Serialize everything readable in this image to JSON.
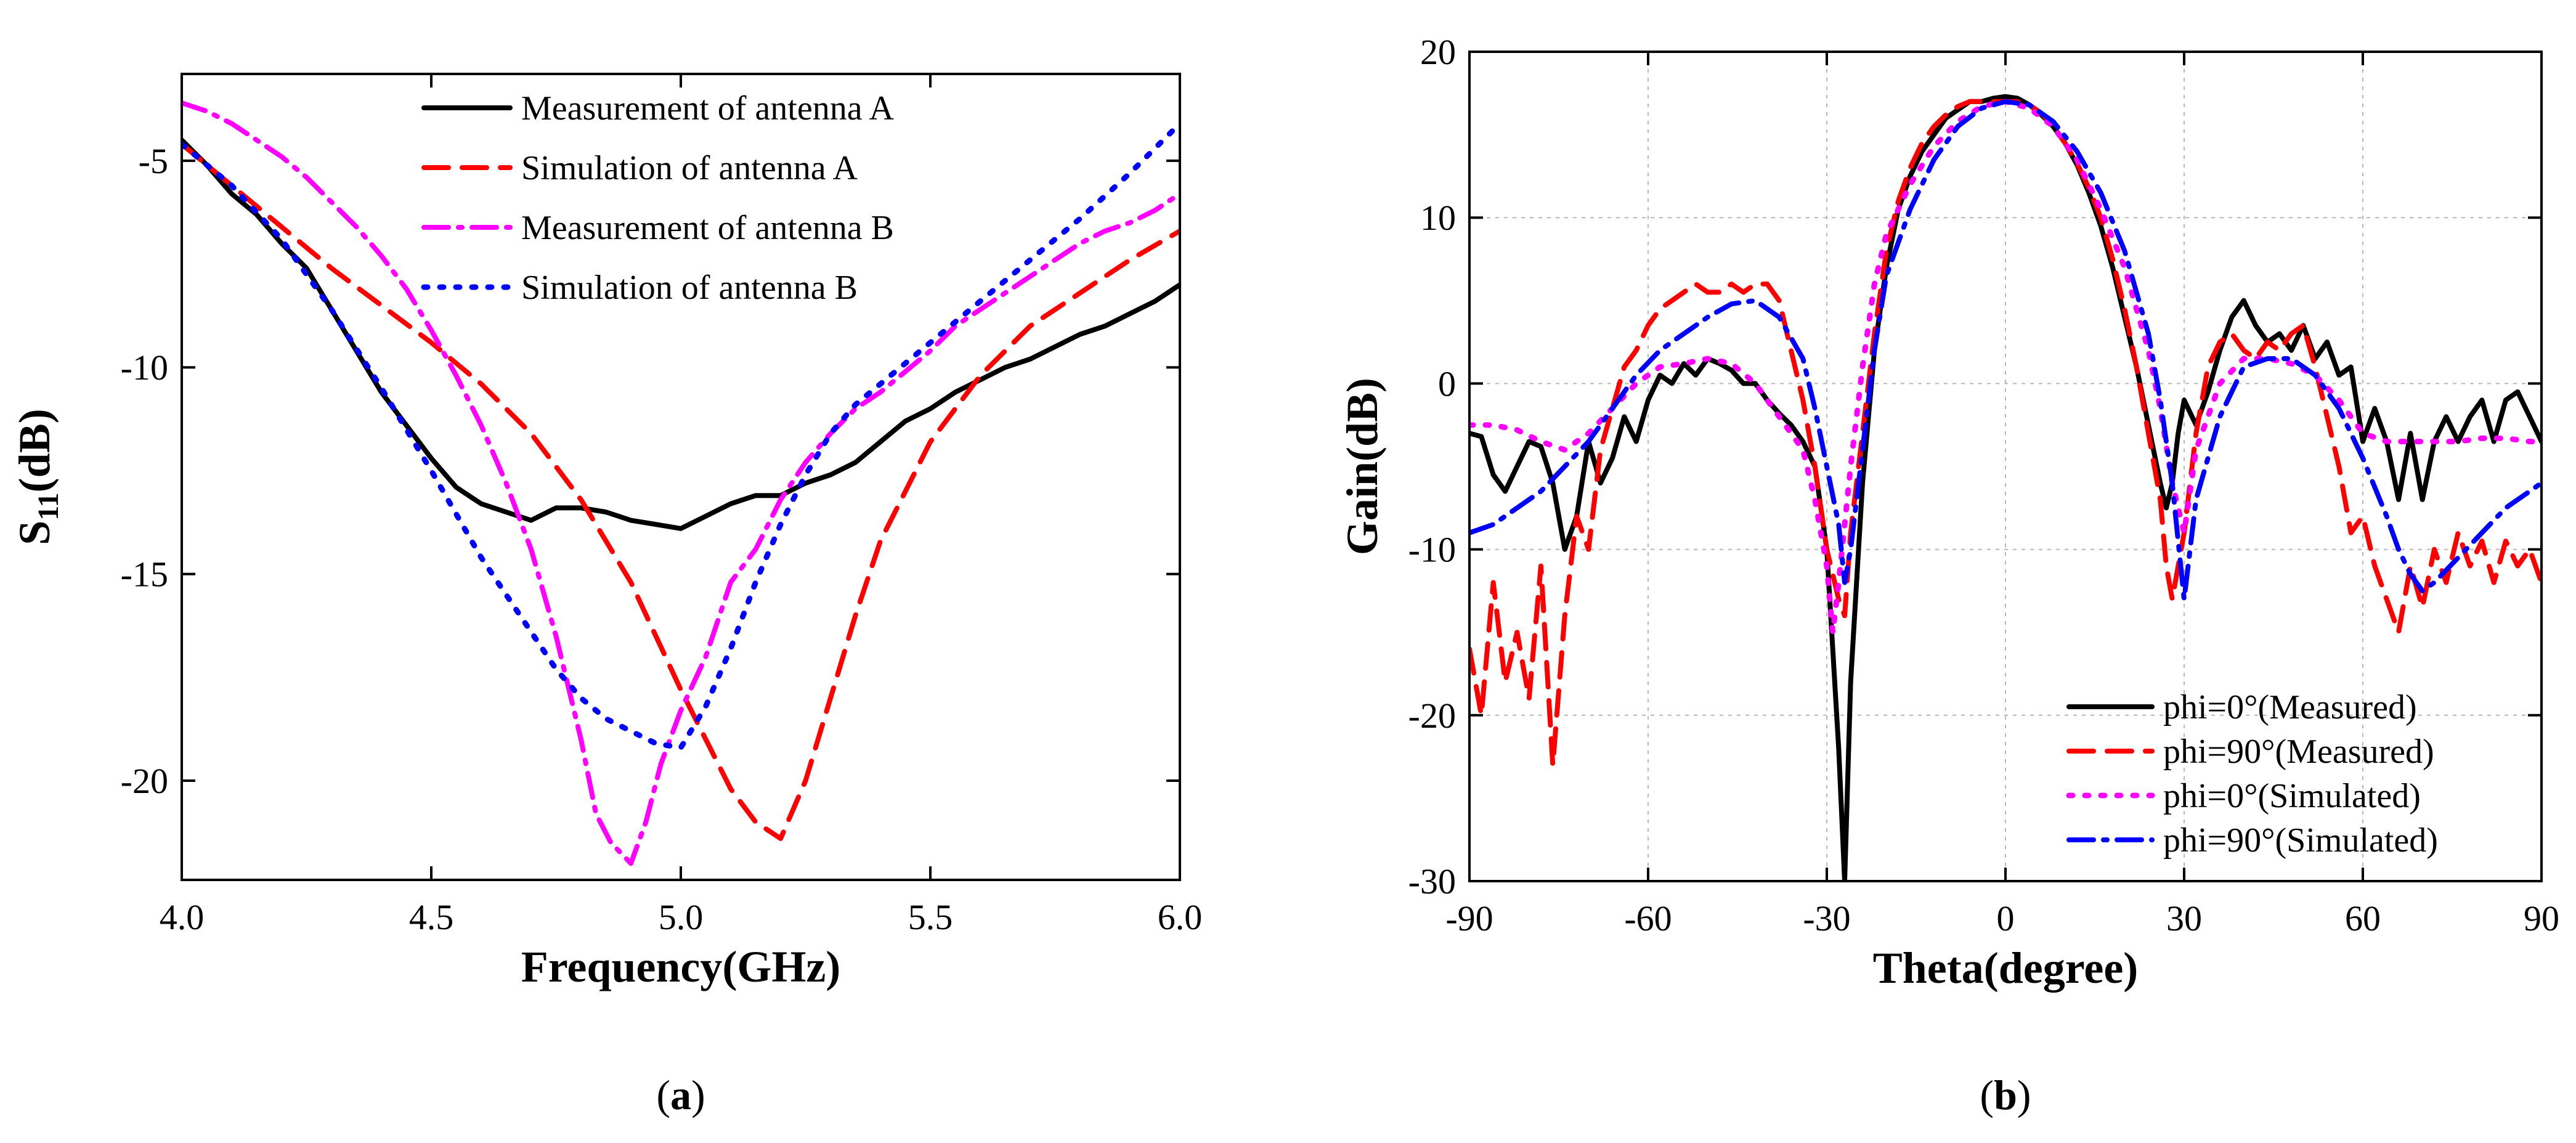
{
  "chart_data": [
    {
      "type": "line",
      "panel_label": "a",
      "xlabel": "Frequency(GHz)",
      "ylabel": {
        "main": "S",
        "sub": "11",
        "unit": "(dB)"
      },
      "xlim": [
        4.0,
        6.0
      ],
      "ylim": [
        -22.4,
        -2.9
      ],
      "xticks": [
        "4.0",
        "4.5",
        "5.0",
        "5.5",
        "6.0"
      ],
      "xtick_values": [
        4.0,
        4.5,
        5.0,
        5.5,
        6.0
      ],
      "yticks": [
        "-5",
        "-10",
        "-15",
        "-20"
      ],
      "ytick_values": [
        -5,
        -10,
        -15,
        -20
      ],
      "grid": false,
      "legend_position": "top-right",
      "series": [
        {
          "name": "Measurement of antenna A",
          "color": "#000000",
          "dash": "solid",
          "x": [
            4.0,
            4.05,
            4.1,
            4.15,
            4.2,
            4.25,
            4.3,
            4.35,
            4.4,
            4.45,
            4.5,
            4.55,
            4.6,
            4.65,
            4.7,
            4.75,
            4.8,
            4.85,
            4.9,
            4.95,
            5.0,
            5.05,
            5.1,
            5.15,
            5.2,
            5.25,
            5.3,
            5.35,
            5.4,
            5.45,
            5.5,
            5.55,
            5.6,
            5.65,
            5.7,
            5.75,
            5.8,
            5.85,
            5.9,
            5.95,
            6.0
          ],
          "y": [
            -4.5,
            -5.1,
            -5.8,
            -6.3,
            -7.0,
            -7.6,
            -8.6,
            -9.6,
            -10.6,
            -11.4,
            -12.2,
            -12.9,
            -13.3,
            -13.5,
            -13.7,
            -13.4,
            -13.4,
            -13.5,
            -13.7,
            -13.8,
            -13.9,
            -13.6,
            -13.3,
            -13.1,
            -13.1,
            -12.8,
            -12.6,
            -12.3,
            -11.8,
            -11.3,
            -11.0,
            -10.6,
            -10.3,
            -10.0,
            -9.8,
            -9.5,
            -9.2,
            -9.0,
            -8.7,
            -8.4,
            -8.0
          ]
        },
        {
          "name": "Simulation of antenna A",
          "color": "#ff0000",
          "dash": "dash",
          "x": [
            4.0,
            4.1,
            4.2,
            4.3,
            4.4,
            4.5,
            4.6,
            4.7,
            4.8,
            4.85,
            4.9,
            4.95,
            5.0,
            5.05,
            5.1,
            5.15,
            5.2,
            5.25,
            5.3,
            5.35,
            5.4,
            5.5,
            5.6,
            5.7,
            5.8,
            5.9,
            6.0
          ],
          "y": [
            -4.6,
            -5.6,
            -6.6,
            -7.6,
            -8.5,
            -9.4,
            -10.4,
            -11.6,
            -13.2,
            -14.2,
            -15.2,
            -16.5,
            -17.8,
            -19.0,
            -20.2,
            -21.0,
            -21.4,
            -20.0,
            -18.0,
            -16.0,
            -14.2,
            -11.8,
            -10.2,
            -9.0,
            -8.2,
            -7.4,
            -6.7
          ]
        },
        {
          "name": "Measurement of antenna B",
          "color": "#ff00ff",
          "dash": "dashdot",
          "x": [
            4.0,
            4.05,
            4.1,
            4.15,
            4.2,
            4.25,
            4.3,
            4.35,
            4.4,
            4.45,
            4.5,
            4.55,
            4.6,
            4.65,
            4.7,
            4.75,
            4.8,
            4.83,
            4.86,
            4.9,
            4.93,
            4.96,
            5.0,
            5.05,
            5.1,
            5.15,
            5.2,
            5.25,
            5.3,
            5.35,
            5.4,
            5.45,
            5.5,
            5.55,
            5.6,
            5.65,
            5.7,
            5.75,
            5.8,
            5.85,
            5.9,
            5.95,
            6.0
          ],
          "y": [
            -3.6,
            -3.8,
            -4.1,
            -4.5,
            -4.9,
            -5.4,
            -6.0,
            -6.6,
            -7.3,
            -8.1,
            -9.1,
            -10.2,
            -11.4,
            -12.8,
            -14.4,
            -16.5,
            -19.0,
            -20.8,
            -21.5,
            -22.0,
            -21.0,
            -19.6,
            -18.3,
            -17.0,
            -15.2,
            -14.4,
            -13.2,
            -12.3,
            -11.6,
            -11.0,
            -10.6,
            -10.1,
            -9.6,
            -9.0,
            -8.6,
            -8.2,
            -7.8,
            -7.4,
            -7.0,
            -6.7,
            -6.5,
            -6.2,
            -5.8
          ]
        },
        {
          "name": "Simulation of antenna B",
          "color": "#0000ff",
          "dash": "dot",
          "x": [
            4.0,
            4.1,
            4.2,
            4.3,
            4.4,
            4.5,
            4.6,
            4.7,
            4.75,
            4.8,
            4.85,
            4.9,
            4.95,
            5.0,
            5.05,
            5.1,
            5.15,
            5.2,
            5.25,
            5.3,
            5.35,
            5.4,
            5.5,
            5.6,
            5.7,
            5.8,
            5.9,
            6.0
          ],
          "y": [
            -4.6,
            -5.6,
            -6.9,
            -8.6,
            -10.5,
            -12.5,
            -14.6,
            -16.4,
            -17.3,
            -18.0,
            -18.5,
            -18.8,
            -19.1,
            -19.2,
            -18.2,
            -16.8,
            -15.2,
            -13.8,
            -12.6,
            -11.6,
            -10.9,
            -10.4,
            -9.4,
            -8.4,
            -7.4,
            -6.4,
            -5.3,
            -4.1
          ]
        }
      ]
    },
    {
      "type": "line",
      "panel_label": "b",
      "xlabel": "Theta(degree)",
      "ylabel": "Gain(dB)",
      "xlim": [
        -90,
        90
      ],
      "ylim": [
        -30,
        20
      ],
      "xticks": [
        "-90",
        "-60",
        "-30",
        "0",
        "30",
        "60",
        "90"
      ],
      "xtick_values": [
        -90,
        -60,
        -30,
        0,
        30,
        60,
        90
      ],
      "yticks": [
        "20",
        "10",
        "0",
        "-10",
        "-20",
        "-30"
      ],
      "ytick_values": [
        20,
        10,
        0,
        -10,
        -20,
        -30
      ],
      "grid": true,
      "legend_position": "bottom-right",
      "series": [
        {
          "name": "phi=0°(Measured)",
          "color": "#000000",
          "dash": "solid",
          "x": [
            -90,
            -88,
            -86,
            -84,
            -82,
            -80,
            -78,
            -76,
            -74,
            -72,
            -70,
            -68,
            -66,
            -64,
            -62,
            -60,
            -58,
            -56,
            -54,
            -52,
            -50,
            -48,
            -46,
            -44,
            -42,
            -40,
            -38,
            -36,
            -34,
            -32,
            -30,
            -28,
            -27,
            -26,
            -25,
            -24,
            -22,
            -20,
            -18,
            -16,
            -14,
            -12,
            -10,
            -8,
            -6,
            -4,
            -2,
            0,
            2,
            4,
            6,
            8,
            10,
            12,
            14,
            16,
            18,
            20,
            22,
            24,
            26,
            27,
            28,
            29,
            30,
            32,
            34,
            36,
            38,
            40,
            42,
            44,
            46,
            48,
            50,
            52,
            54,
            56,
            58,
            60,
            62,
            64,
            66,
            68,
            70,
            72,
            74,
            76,
            78,
            80,
            82,
            84,
            86,
            88,
            90
          ],
          "y": [
            -3,
            -3.2,
            -5.5,
            -6.5,
            -5,
            -3.5,
            -3.8,
            -6,
            -10,
            -8,
            -3.5,
            -6,
            -4.5,
            -2,
            -3.5,
            -1,
            0.5,
            0,
            1.2,
            0.5,
            1.5,
            1.2,
            0.8,
            0,
            0,
            -1,
            -1.8,
            -2.5,
            -3.5,
            -5,
            -10,
            -22,
            -30,
            -18,
            -12,
            -6,
            2,
            7,
            10.5,
            12.5,
            14,
            15,
            16,
            16.5,
            17,
            17,
            17.2,
            17.3,
            17.2,
            16.8,
            16.2,
            15.5,
            14.5,
            13.2,
            11.5,
            9.5,
            7,
            4,
            1,
            -2.5,
            -6,
            -7.5,
            -6,
            -3,
            -1,
            -2.5,
            -0.5,
            2,
            4,
            5,
            3.5,
            2.5,
            3,
            2,
            3.5,
            1.5,
            2.5,
            0.5,
            1,
            -3.5,
            -1.5,
            -3.5,
            -7,
            -3,
            -7,
            -3.5,
            -2,
            -3.5,
            -2,
            -1,
            -3.5,
            -1,
            -0.5,
            -2,
            -3.5
          ]
        },
        {
          "name": "phi=90°(Measured)",
          "color": "#ff0000",
          "dash": "dash",
          "x": [
            -90,
            -88,
            -86,
            -84,
            -82,
            -80,
            -78,
            -76,
            -74,
            -72,
            -70,
            -68,
            -66,
            -64,
            -62,
            -60,
            -58,
            -56,
            -54,
            -52,
            -50,
            -48,
            -46,
            -44,
            -42,
            -40,
            -38,
            -36,
            -34,
            -32,
            -30,
            -28,
            -27,
            -26,
            -24,
            -22,
            -20,
            -18,
            -16,
            -14,
            -12,
            -10,
            -8,
            -6,
            -4,
            -2,
            0,
            2,
            4,
            6,
            8,
            10,
            12,
            14,
            16,
            18,
            20,
            22,
            24,
            26,
            27,
            28,
            30,
            32,
            34,
            36,
            38,
            40,
            42,
            44,
            46,
            48,
            50,
            52,
            54,
            56,
            58,
            60,
            62,
            64,
            66,
            68,
            70,
            72,
            74,
            76,
            78,
            80,
            82,
            84,
            86,
            88,
            90
          ],
          "y": [
            -16,
            -20,
            -12,
            -18,
            -15,
            -19,
            -11,
            -23,
            -14,
            -8,
            -10,
            -4,
            -1.5,
            1,
            2,
            3.5,
            4.5,
            5,
            5.5,
            6,
            5.5,
            5.5,
            6,
            5.5,
            6,
            6,
            5,
            2,
            -1,
            -5,
            -10,
            -13,
            -14,
            -9,
            -3,
            3,
            8,
            11,
            13,
            14.5,
            15.5,
            16.2,
            16.7,
            17,
            17,
            17,
            17,
            17,
            16.8,
            16.3,
            15.5,
            14.5,
            13.3,
            11.8,
            10,
            7.5,
            4.5,
            1,
            -3,
            -7,
            -11,
            -13,
            -9,
            -3,
            1,
            2.5,
            3,
            2,
            1.5,
            2.5,
            2,
            3,
            3.5,
            1,
            -2,
            -5,
            -9,
            -8,
            -11,
            -13,
            -15,
            -11,
            -13.5,
            -10,
            -12,
            -9,
            -11,
            -9.5,
            -12,
            -9.5,
            -11,
            -10,
            -12
          ]
        },
        {
          "name": "phi=0°(Simulated)",
          "color": "#ff00ff",
          "dash": "dot",
          "x": [
            -90,
            -86,
            -82,
            -78,
            -74,
            -70,
            -66,
            -62,
            -58,
            -54,
            -50,
            -46,
            -42,
            -38,
            -34,
            -32,
            -30,
            -29,
            -28,
            -26,
            -24,
            -22,
            -20,
            -16,
            -12,
            -8,
            -4,
            0,
            4,
            8,
            12,
            16,
            20,
            24,
            26,
            28,
            30,
            32,
            36,
            40,
            44,
            48,
            52,
            56,
            60,
            64,
            68,
            72,
            76,
            80,
            84,
            88,
            90
          ],
          "y": [
            -2.5,
            -2.5,
            -2.8,
            -3.5,
            -4,
            -3,
            -1.5,
            0,
            1,
            1.2,
            1.5,
            1.2,
            0,
            -2,
            -4,
            -7,
            -11,
            -15,
            -12,
            -5,
            1,
            6,
            9,
            12,
            14.3,
            15.8,
            16.7,
            17,
            16.6,
            15.5,
            13.5,
            10.5,
            7,
            2,
            -1.5,
            -6,
            -9,
            -4,
            0,
            1.5,
            1.5,
            1.2,
            0.5,
            -1,
            -3,
            -3.5,
            -3.5,
            -3.5,
            -3.5,
            -3.3,
            -3.3,
            -3.5,
            -3.5
          ]
        },
        {
          "name": "phi=90°(Simulated)",
          "color": "#0000ff",
          "dash": "dashdot",
          "x": [
            -90,
            -86,
            -82,
            -78,
            -74,
            -70,
            -66,
            -62,
            -58,
            -54,
            -50,
            -46,
            -42,
            -38,
            -34,
            -32,
            -30,
            -28,
            -27,
            -26,
            -24,
            -22,
            -20,
            -16,
            -12,
            -8,
            -4,
            0,
            4,
            8,
            12,
            16,
            20,
            24,
            26,
            28,
            29,
            30,
            32,
            36,
            40,
            44,
            48,
            52,
            56,
            60,
            64,
            66,
            68,
            70,
            72,
            76,
            80,
            84,
            88,
            90
          ],
          "y": [
            -9,
            -8.5,
            -7.5,
            -6.5,
            -5,
            -3.5,
            -1.5,
            0.5,
            2,
            3,
            4,
            4.8,
            5,
            4,
            1.5,
            -1.5,
            -5,
            -8.5,
            -12,
            -10,
            -4,
            2,
            6.5,
            10.5,
            13.5,
            15.5,
            16.6,
            17,
            16.8,
            15.8,
            14,
            11.5,
            8,
            3,
            -1,
            -6,
            -9.5,
            -13,
            -7,
            -2,
            1,
            1.5,
            1.5,
            0.5,
            -1.5,
            -4.5,
            -8,
            -10,
            -11.5,
            -12.5,
            -12,
            -10.5,
            -9,
            -7.5,
            -6.5,
            -6
          ]
        }
      ]
    }
  ]
}
